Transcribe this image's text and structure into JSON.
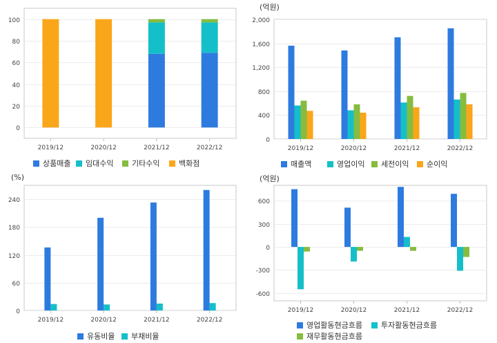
{
  "colors": {
    "blue": "#2e7be0",
    "teal": "#15bfc9",
    "green": "#86bc3f",
    "orange": "#faa61a"
  },
  "chart_data": [
    {
      "type": "bar",
      "stacked": true,
      "title": "",
      "unit": "",
      "categories": [
        "2019/12",
        "2020/12",
        "2021/12",
        "2022/12"
      ],
      "ylim": [
        -10,
        110
      ],
      "yticks": [
        "0",
        "20",
        "40",
        "60",
        "80",
        "100"
      ],
      "ytick_values": [
        0,
        20,
        40,
        60,
        80,
        100
      ],
      "grid": true,
      "legend_position": "bottom",
      "series": [
        {
          "name": "상품매출",
          "color": "#2e7be0",
          "values": [
            0,
            0,
            68,
            69
          ]
        },
        {
          "name": "임대수익",
          "color": "#15bfc9",
          "values": [
            0,
            0,
            29,
            28
          ]
        },
        {
          "name": "기타수익",
          "color": "#86bc3f",
          "values": [
            0,
            0,
            3,
            3
          ]
        },
        {
          "name": "백화점",
          "color": "#faa61a",
          "values": [
            100,
            100,
            0,
            0
          ]
        }
      ]
    },
    {
      "type": "bar",
      "stacked": false,
      "title": "",
      "unit": "(억원)",
      "categories": [
        "2019/12",
        "2020/12",
        "2021/12",
        "2022/12"
      ],
      "ylim": [
        0,
        2000
      ],
      "yticks": [
        "0",
        "400",
        "800",
        "1,200",
        "1,600",
        "2,000"
      ],
      "ytick_values": [
        0,
        400,
        800,
        1200,
        1600,
        2000
      ],
      "grid": true,
      "legend_position": "bottom",
      "series": [
        {
          "name": "매출액",
          "color": "#2e7be0",
          "values": [
            1560,
            1480,
            1700,
            1850
          ]
        },
        {
          "name": "영업이익",
          "color": "#15bfc9",
          "values": [
            560,
            480,
            610,
            660
          ]
        },
        {
          "name": "세전이익",
          "color": "#86bc3f",
          "values": [
            640,
            580,
            720,
            770
          ]
        },
        {
          "name": "순이익",
          "color": "#faa61a",
          "values": [
            470,
            440,
            530,
            580
          ]
        }
      ]
    },
    {
      "type": "bar",
      "stacked": false,
      "title": "",
      "unit": "(%)",
      "categories": [
        "2019/12",
        "2020/12",
        "2021/12",
        "2022/12"
      ],
      "ylim": [
        0,
        270
      ],
      "yticks": [
        "0",
        "60",
        "120",
        "180",
        "240"
      ],
      "ytick_values": [
        0,
        60,
        120,
        180,
        240
      ],
      "grid": true,
      "legend_position": "bottom",
      "series": [
        {
          "name": "유동비율",
          "color": "#2e7be0",
          "values": [
            136,
            200,
            233,
            260
          ]
        },
        {
          "name": "부채비율",
          "color": "#15bfc9",
          "values": [
            14,
            13,
            15,
            16
          ]
        }
      ]
    },
    {
      "type": "bar",
      "stacked": false,
      "title": "",
      "unit": "(억원)",
      "categories": [
        "2019/12",
        "2020/12",
        "2021/12",
        "2022/12"
      ],
      "ylim": [
        -700,
        800
      ],
      "yticks": [
        "-600",
        "-300",
        "0",
        "300",
        "600"
      ],
      "ytick_values": [
        -600,
        -300,
        0,
        300,
        600
      ],
      "grid": true,
      "legend_position": "bottom",
      "series": [
        {
          "name": "영업활동현금흐름",
          "color": "#2e7be0",
          "values": [
            750,
            510,
            780,
            690
          ]
        },
        {
          "name": "투자활동현금흐름",
          "color": "#15bfc9",
          "values": [
            -550,
            -190,
            130,
            -310
          ]
        },
        {
          "name": "재무활동현금흐름",
          "color": "#86bc3f",
          "values": [
            -60,
            -50,
            -50,
            -130
          ]
        }
      ]
    }
  ]
}
